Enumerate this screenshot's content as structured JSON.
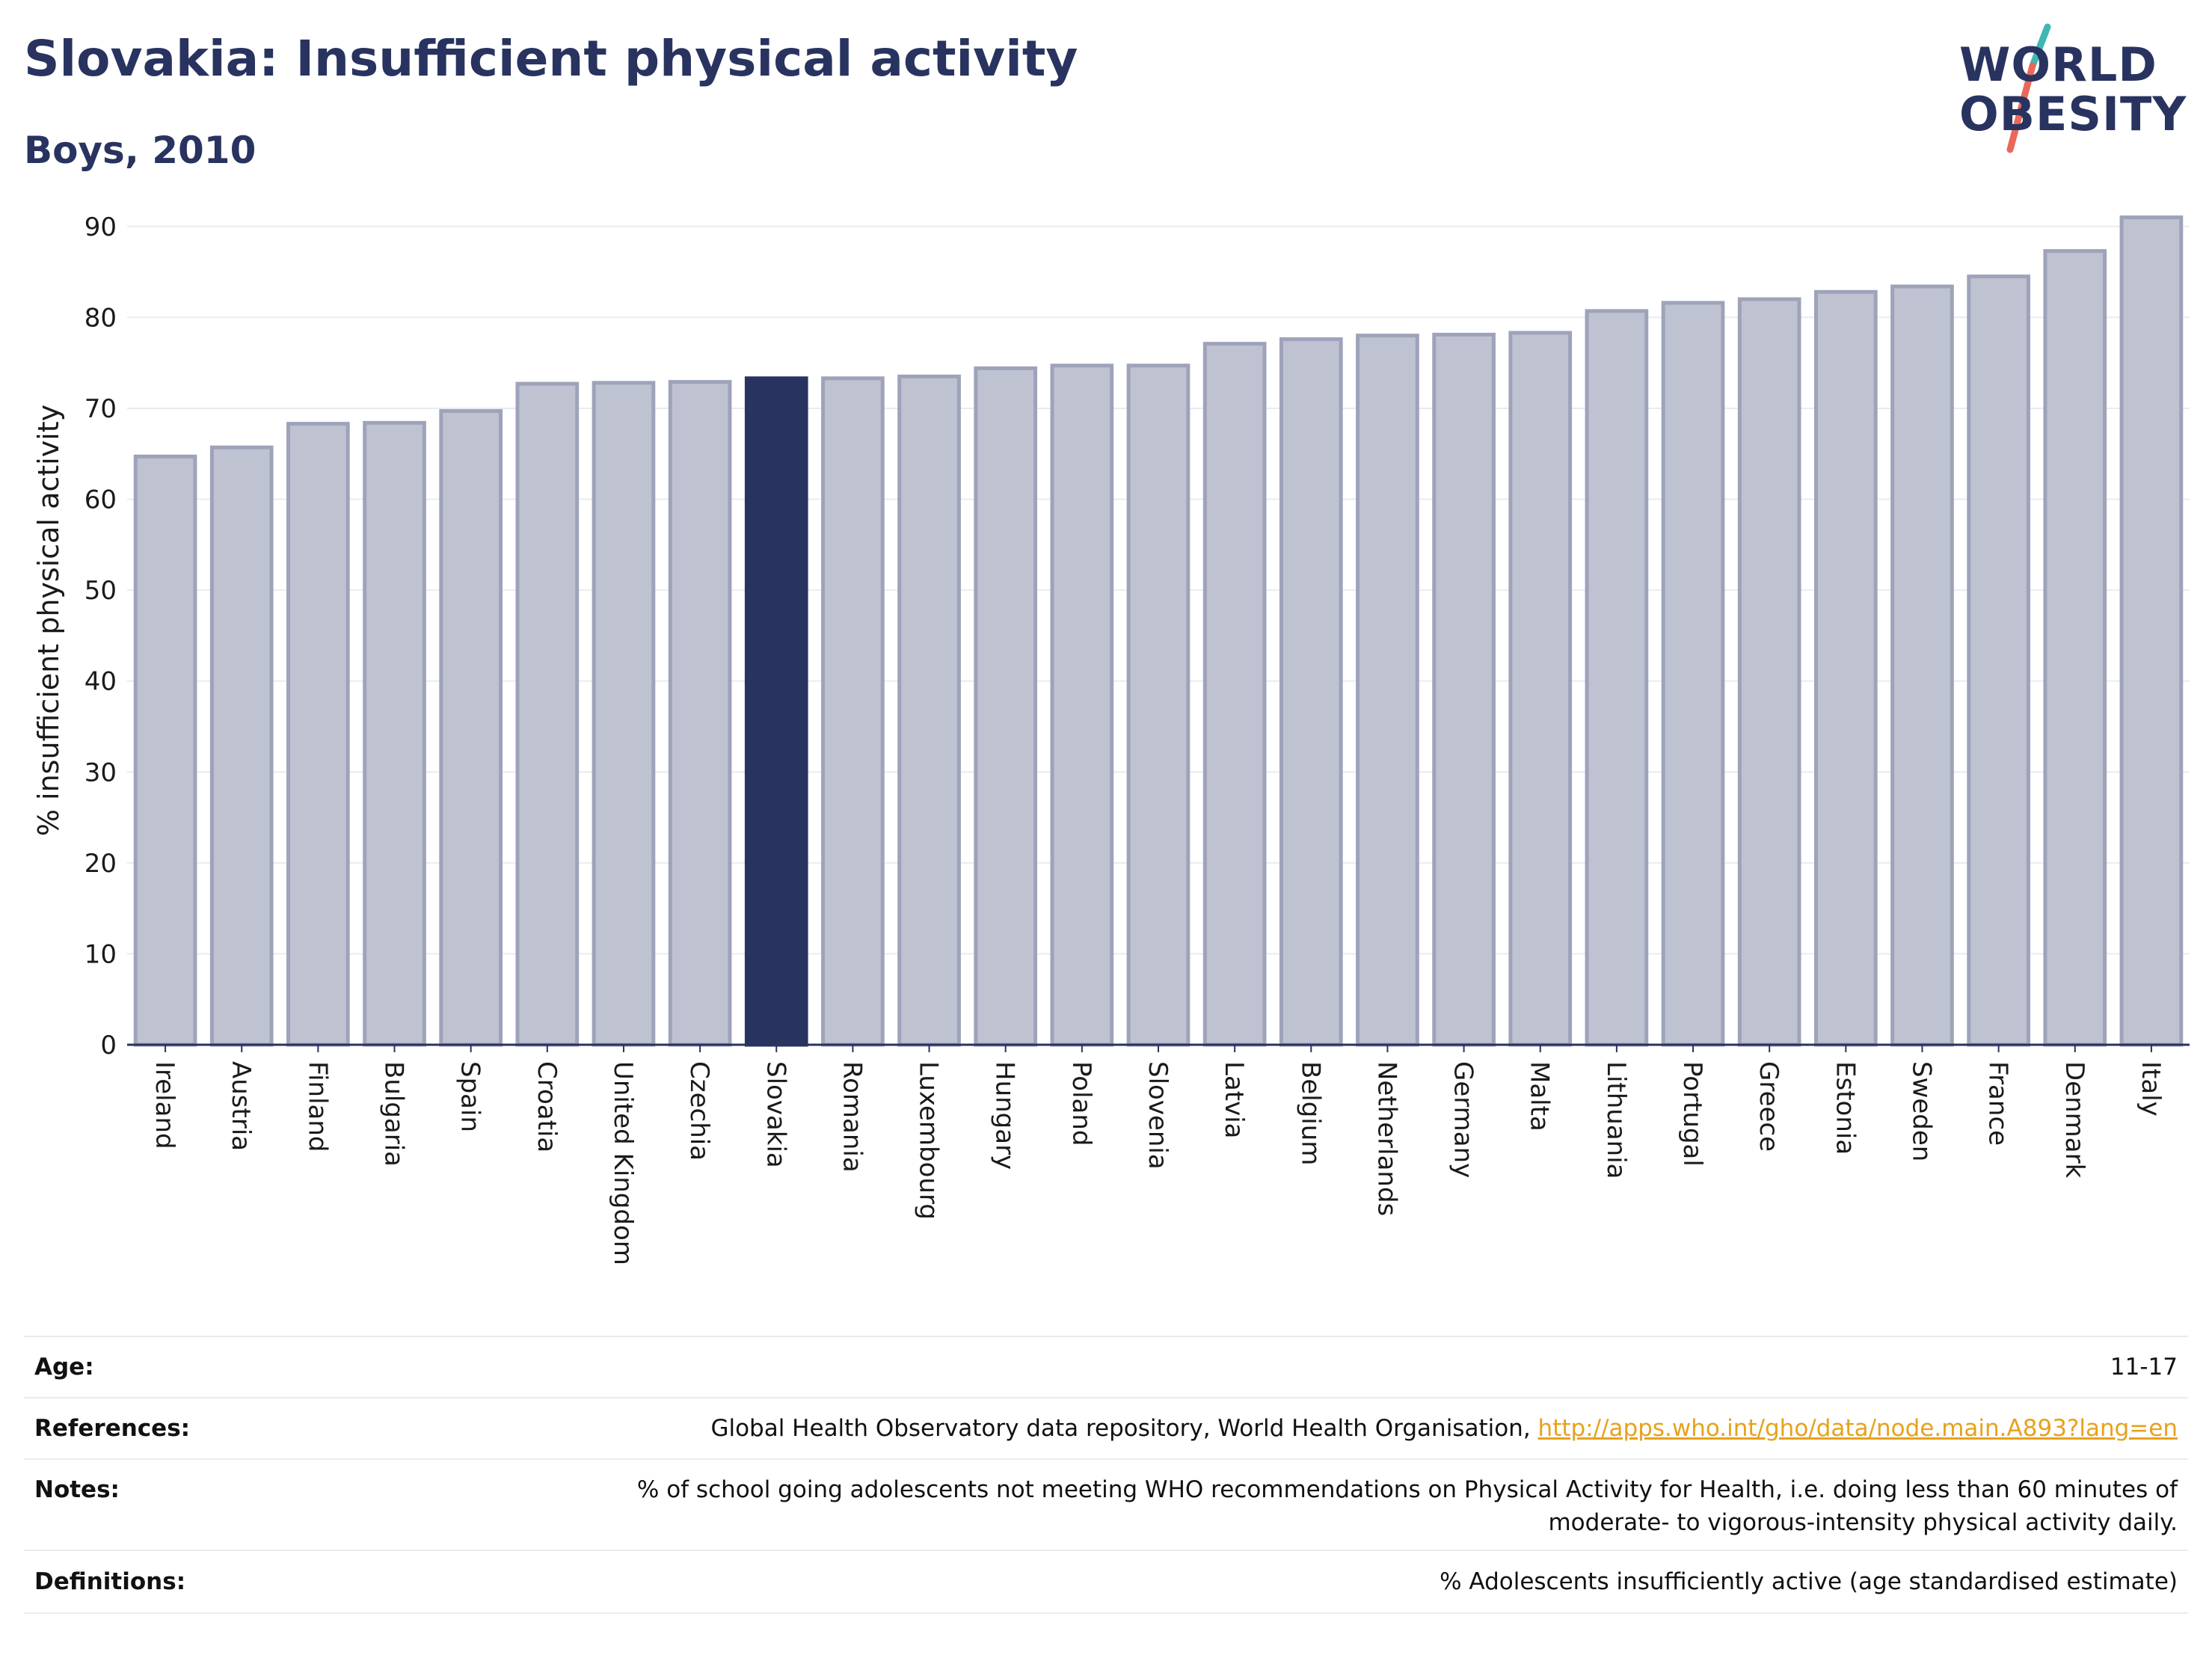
{
  "header": {
    "title": "Slovakia: Insufficient physical activity",
    "subtitle": "Boys, 2010"
  },
  "logo": {
    "line1": "WORLD",
    "line2": "OBESITY",
    "slash_colors": [
      "#3fb7b3",
      "#e9685a"
    ]
  },
  "colors": {
    "bar_fill": "#bfc2d0",
    "bar_stroke": "#9ea3ba",
    "highlight": "#283360",
    "grid": "#e9ebf1",
    "axis": "#283360",
    "link": "#e7a21c"
  },
  "chart_data": {
    "type": "bar",
    "ylabel": "% insufficient physical activity",
    "ylim": [
      0,
      95
    ],
    "yticks": [
      0,
      10,
      20,
      30,
      40,
      50,
      60,
      70,
      80,
      90
    ],
    "grid": true,
    "highlight_category": "Slovakia",
    "categories": [
      "Ireland",
      "Austria",
      "Finland",
      "Bulgaria",
      "Spain",
      "Croatia",
      "United Kingdom",
      "Czechia",
      "Slovakia",
      "Romania",
      "Luxembourg",
      "Hungary",
      "Poland",
      "Slovenia",
      "Latvia",
      "Belgium",
      "Netherlands",
      "Germany",
      "Malta",
      "Lithuania",
      "Portugal",
      "Greece",
      "Estonia",
      "Sweden",
      "France",
      "Denmark",
      "Italy"
    ],
    "values": [
      64.7,
      65.7,
      68.3,
      68.4,
      69.7,
      72.7,
      72.8,
      72.9,
      73.3,
      73.3,
      73.5,
      74.4,
      74.7,
      74.7,
      77.1,
      77.6,
      78.0,
      78.1,
      78.3,
      80.7,
      81.6,
      82.0,
      82.8,
      83.4,
      84.5,
      87.3,
      91.0
    ]
  },
  "meta": {
    "rows": [
      {
        "label": "Age:",
        "value": "11-17"
      },
      {
        "label": "References:",
        "value": "Global Health Observatory data repository, World Health Organisation,",
        "link": "http://apps.who.int/gho/data/node.main.A893?lang=en"
      },
      {
        "label": "Notes:",
        "value": "% of school going adolescents not meeting WHO recommendations on Physical Activity for Health, i.e. doing less than 60 minutes of moderate- to vigorous-intensity physical activity daily."
      },
      {
        "label": "Definitions:",
        "value": "% Adolescents insufficiently active (age standardised estimate)"
      }
    ]
  }
}
